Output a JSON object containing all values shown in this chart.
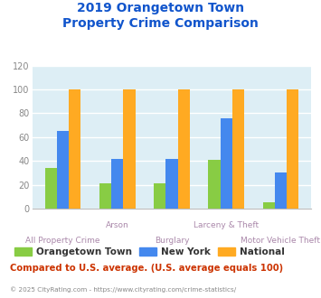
{
  "title": "2019 Orangetown Town\nProperty Crime Comparison",
  "categories": [
    "All Property Crime",
    "Arson",
    "Burglary",
    "Larceny & Theft",
    "Motor Vehicle Theft"
  ],
  "series": {
    "Orangetown Town": [
      34,
      21,
      21,
      41,
      5
    ],
    "New York": [
      65,
      42,
      42,
      76,
      30
    ],
    "National": [
      100,
      100,
      100,
      100,
      100
    ]
  },
  "colors": {
    "Orangetown Town": "#88cc44",
    "New York": "#4488ee",
    "National": "#ffaa22"
  },
  "ylim": [
    0,
    120
  ],
  "yticks": [
    0,
    20,
    40,
    60,
    80,
    100,
    120
  ],
  "title_color": "#1155cc",
  "title_fontsize": 10,
  "bg_color": "#ddeef5",
  "grid_color": "#ffffff",
  "footer_text": "Compared to U.S. average. (U.S. average equals 100)",
  "footer_color": "#cc3300",
  "copyright_text": "© 2025 CityRating.com - https://www.cityrating.com/crime-statistics/",
  "copyright_color": "#888888",
  "xlabel_color": "#aa88aa",
  "tick_color": "#888888",
  "bar_width": 0.22,
  "cat_labels_row1": [
    "All Property Crime",
    "",
    "Burglary",
    "",
    "Motor Vehicle Theft"
  ],
  "cat_labels_row2": [
    "",
    "Arson",
    "",
    "Larceny & Theft",
    ""
  ]
}
